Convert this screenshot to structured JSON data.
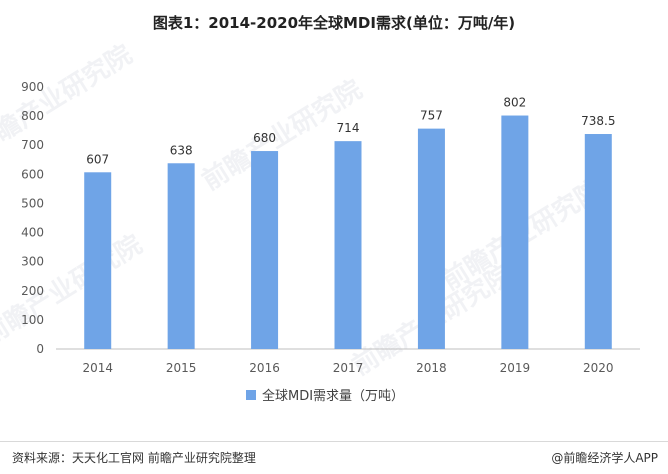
{
  "title": "图表1：2014-2020年全球MDI需求(单位：万吨/年)",
  "chart_data": {
    "type": "bar",
    "categories": [
      "2014",
      "2015",
      "2016",
      "2017",
      "2018",
      "2019",
      "2020"
    ],
    "series": [
      {
        "name": "全球MDI需求量（万吨）",
        "values": [
          607,
          638,
          680,
          714,
          757,
          802,
          738.5
        ],
        "color": "#6fa4e7"
      }
    ],
    "data_labels": [
      "607",
      "638",
      "680",
      "714",
      "757",
      "802",
      "738.5"
    ],
    "y_ticks": [
      0,
      100,
      200,
      300,
      400,
      500,
      600,
      700,
      800,
      900
    ],
    "ylim": [
      0,
      900
    ],
    "grid": false,
    "legend_position": "bottom"
  },
  "watermark": "前瞻产业研究院",
  "footer": {
    "source": "资料来源：天天化工官网 前瞻产业研究院整理",
    "brand": "@前瞻经济学人APP"
  }
}
